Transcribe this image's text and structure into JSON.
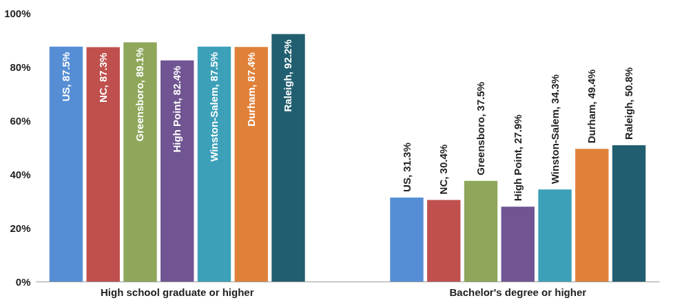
{
  "chart_data": {
    "type": "bar",
    "categories": [
      "High school graduate or higher",
      "Bachelor's degree or higher"
    ],
    "series": [
      {
        "color": "#558ed5",
        "values": [
          87.5,
          31.3
        ],
        "value_labels": [
          "US, 87.5%",
          "US, 31.3%"
        ]
      },
      {
        "color": "#c0504d",
        "values": [
          87.3,
          30.4
        ],
        "value_labels": [
          "NC, 87.3%",
          "NC, 30.4%"
        ]
      },
      {
        "color": "#8ea75a",
        "values": [
          89.1,
          37.5
        ],
        "value_labels": [
          "Greensboro, 89.1%",
          "Greensboro, 37.5%"
        ]
      },
      {
        "color": "#705592",
        "values": [
          82.4,
          27.9
        ],
        "value_labels": [
          "High Point, 82.4%",
          "High Point, 27.9%"
        ]
      },
      {
        "color": "#3ca0b9",
        "values": [
          87.5,
          34.3
        ],
        "value_labels": [
          "Winston-Salem, 87.5%",
          "Winston-Salem, 34.3%"
        ]
      },
      {
        "color": "#e0813a",
        "values": [
          87.4,
          49.4
        ],
        "value_labels": [
          "Durham, 87.4%",
          "Durham, 49.4%"
        ]
      },
      {
        "color": "#215e70",
        "values": [
          92.2,
          50.8
        ],
        "value_labels": [
          "Raleigh, 92.2%",
          "Raleigh, 50.8%"
        ]
      }
    ],
    "ylim": [
      0,
      100
    ],
    "yticks": [
      {
        "value": 0,
        "label": "0%"
      },
      {
        "value": 20,
        "label": "20%"
      },
      {
        "value": 40,
        "label": "40%"
      },
      {
        "value": 60,
        "label": "60%"
      },
      {
        "value": 80,
        "label": "80%"
      },
      {
        "value": 100,
        "label": "100%"
      }
    ],
    "grid": false,
    "legend": false
  }
}
